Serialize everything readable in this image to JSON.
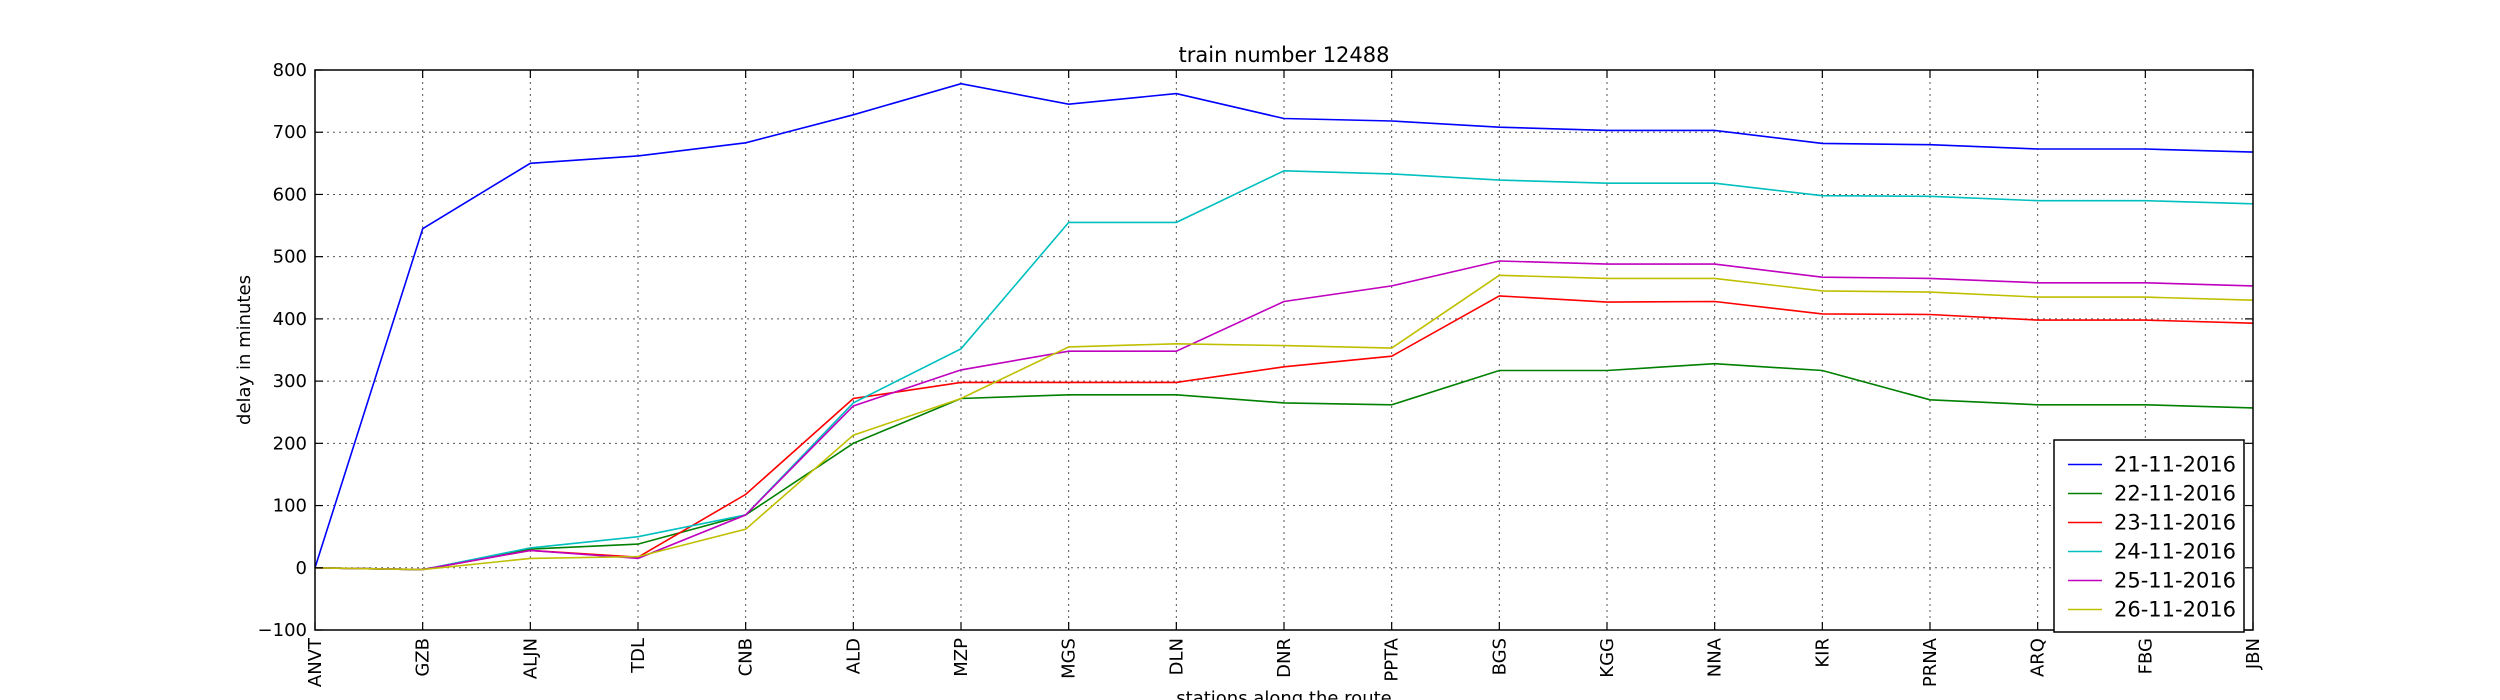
{
  "chart_data": {
    "type": "line",
    "title": "train number 12488",
    "xlabel": "stations along the route",
    "ylabel": "delay in minutes",
    "categories": [
      "ANVT",
      "GZB",
      "ALJN",
      "TDL",
      "CNB",
      "ALD",
      "MZP",
      "MGS",
      "DLN",
      "DNR",
      "PPTA",
      "BGS",
      "KGG",
      "NNA",
      "KIR",
      "PRNA",
      "ARQ",
      "FBG",
      "JBN"
    ],
    "ylim": [
      -100,
      800
    ],
    "yticks": [
      -100,
      0,
      100,
      200,
      300,
      400,
      500,
      600,
      700,
      800
    ],
    "grid": true,
    "legend_position": "bottom-right",
    "series": [
      {
        "name": "21-11-2016",
        "color": "#0000ff",
        "values": [
          0,
          545,
          650,
          662,
          683,
          728,
          778,
          745,
          762,
          722,
          718,
          708,
          703,
          703,
          682,
          680,
          673,
          673,
          668
        ]
      },
      {
        "name": "22-11-2016",
        "color": "#008000",
        "values": [
          0,
          -3,
          30,
          38,
          85,
          200,
          272,
          278,
          278,
          265,
          262,
          317,
          317,
          328,
          317,
          270,
          262,
          262,
          257
        ]
      },
      {
        "name": "23-11-2016",
        "color": "#ff0000",
        "values": [
          0,
          -3,
          28,
          17,
          118,
          272,
          298,
          298,
          298,
          323,
          340,
          437,
          427,
          428,
          408,
          407,
          398,
          398,
          393
        ]
      },
      {
        "name": "24-11-2016",
        "color": "#00bfbf",
        "values": [
          0,
          -3,
          32,
          50,
          85,
          265,
          352,
          555,
          555,
          638,
          633,
          623,
          618,
          618,
          598,
          597,
          590,
          590,
          585
        ]
      },
      {
        "name": "25-11-2016",
        "color": "#bf00bf",
        "values": [
          0,
          -3,
          28,
          15,
          85,
          260,
          318,
          348,
          348,
          428,
          453,
          493,
          488,
          488,
          467,
          465,
          458,
          458,
          453
        ]
      },
      {
        "name": "26-11-2016",
        "color": "#bfbf00",
        "values": [
          0,
          -3,
          15,
          18,
          62,
          213,
          272,
          355,
          360,
          357,
          353,
          470,
          465,
          465,
          445,
          443,
          435,
          435,
          430
        ]
      }
    ]
  }
}
